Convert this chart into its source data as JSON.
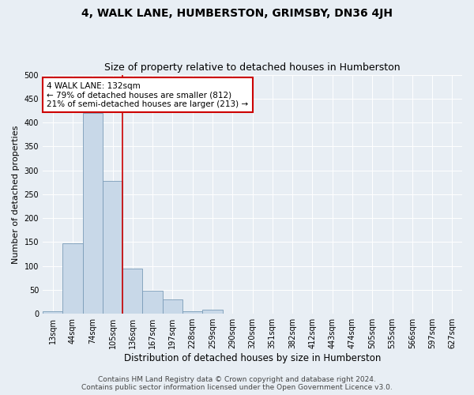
{
  "title": "4, WALK LANE, HUMBERSTON, GRIMSBY, DN36 4JH",
  "subtitle": "Size of property relative to detached houses in Humberston",
  "xlabel": "Distribution of detached houses by size in Humberston",
  "ylabel": "Number of detached properties",
  "bar_values": [
    5,
    148,
    420,
    278,
    95,
    49,
    30,
    5,
    8,
    1,
    0,
    0,
    0,
    0,
    0,
    0,
    0,
    0,
    0,
    0,
    0
  ],
  "bar_labels": [
    "13sqm",
    "44sqm",
    "74sqm",
    "105sqm",
    "136sqm",
    "167sqm",
    "197sqm",
    "228sqm",
    "259sqm",
    "290sqm",
    "320sqm",
    "351sqm",
    "382sqm",
    "412sqm",
    "443sqm",
    "474sqm",
    "505sqm",
    "535sqm",
    "566sqm",
    "597sqm",
    "627sqm"
  ],
  "bar_color": "#c8d8e8",
  "bar_edgecolor": "#7a9cb8",
  "vline_x": 3.5,
  "vline_color": "#cc0000",
  "annotation_text": "4 WALK LANE: 132sqm\n← 79% of detached houses are smaller (812)\n21% of semi-detached houses are larger (213) →",
  "annotation_box_color": "#ffffff",
  "annotation_box_edgecolor": "#cc0000",
  "yticks": [
    0,
    50,
    100,
    150,
    200,
    250,
    300,
    350,
    400,
    450,
    500
  ],
  "ylim": [
    0,
    500
  ],
  "bg_color": "#e8eef4",
  "plot_bg_color": "#e8eef4",
  "footer_line1": "Contains HM Land Registry data © Crown copyright and database right 2024.",
  "footer_line2": "Contains public sector information licensed under the Open Government Licence v3.0.",
  "title_fontsize": 10,
  "subtitle_fontsize": 9,
  "xlabel_fontsize": 8.5,
  "ylabel_fontsize": 8,
  "tick_fontsize": 7,
  "annotation_fontsize": 7.5,
  "footer_fontsize": 6.5
}
